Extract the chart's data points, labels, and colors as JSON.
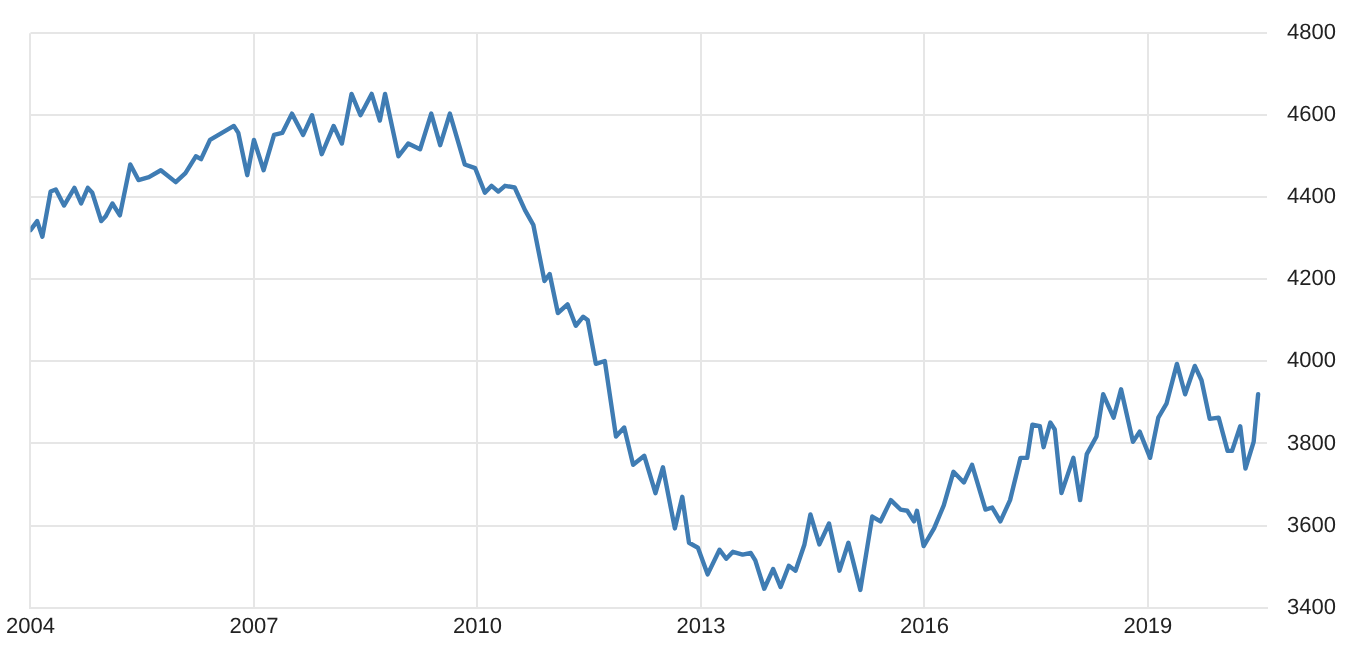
{
  "chart_data": {
    "type": "line",
    "color": "#3f7cb3",
    "marker": "none",
    "line_style": "solid",
    "grid": true,
    "legend": false,
    "x": [
      2004.0,
      2004.09,
      2004.16,
      2004.27,
      2004.34,
      2004.45,
      2004.59,
      2004.68,
      2004.77,
      2004.83,
      2004.95,
      2005.01,
      2005.1,
      2005.2,
      2005.34,
      2005.45,
      2005.59,
      2005.75,
      2005.95,
      2006.08,
      2006.22,
      2006.29,
      2006.41,
      2006.57,
      2006.73,
      2006.79,
      2006.91,
      2007.0,
      2007.13,
      2007.27,
      2007.38,
      2007.51,
      2007.66,
      2007.78,
      2007.91,
      2008.07,
      2008.18,
      2008.31,
      2008.43,
      2008.58,
      2008.69,
      2008.76,
      2008.94,
      2009.07,
      2009.23,
      2009.38,
      2009.5,
      2009.63,
      2009.83,
      2009.97,
      2010.1,
      2010.19,
      2010.28,
      2010.37,
      2010.5,
      2010.64,
      2010.75,
      2010.9,
      2010.97,
      2011.08,
      2011.21,
      2011.32,
      2011.42,
      2011.48,
      2011.59,
      2011.71,
      2011.86,
      2011.97,
      2012.09,
      2012.24,
      2012.39,
      2012.49,
      2012.65,
      2012.75,
      2012.84,
      2012.96,
      2013.09,
      2013.25,
      2013.34,
      2013.43,
      2013.56,
      2013.67,
      2013.73,
      2013.85,
      2013.97,
      2014.07,
      2014.18,
      2014.27,
      2014.39,
      2014.47,
      2014.59,
      2014.72,
      2014.86,
      2014.98,
      2015.14,
      2015.3,
      2015.41,
      2015.55,
      2015.68,
      2015.77,
      2015.86,
      2015.9,
      2015.99,
      2016.13,
      2016.26,
      2016.39,
      2016.53,
      2016.64,
      2016.82,
      2016.91,
      2017.02,
      2017.15,
      2017.29,
      2017.38,
      2017.45,
      2017.55,
      2017.6,
      2017.69,
      2017.75,
      2017.84,
      2018.0,
      2018.09,
      2018.18,
      2018.31,
      2018.4,
      2018.54,
      2018.64,
      2018.8,
      2018.89,
      2019.03,
      2019.14,
      2019.25,
      2019.39,
      2019.5,
      2019.63,
      2019.72,
      2019.83,
      2019.95,
      2020.07,
      2020.13,
      2020.24,
      2020.31,
      2020.42,
      2020.48
    ],
    "values": [
      4320,
      4342,
      4304,
      4414,
      4419,
      4380,
      4423,
      4385,
      4423,
      4411,
      4342,
      4354,
      4385,
      4356,
      4480,
      4442,
      4449,
      4466,
      4437,
      4459,
      4500,
      4493,
      4540,
      4557,
      4574,
      4557,
      4454,
      4540,
      4466,
      4552,
      4557,
      4604,
      4552,
      4600,
      4505,
      4574,
      4531,
      4652,
      4600,
      4652,
      4587,
      4652,
      4500,
      4531,
      4517,
      4604,
      4527,
      4604,
      4480,
      4471,
      4411,
      4428,
      4414,
      4428,
      4424,
      4368,
      4333,
      4196,
      4213,
      4118,
      4139,
      4087,
      4109,
      4101,
      3994,
      4001,
      3817,
      3839,
      3748,
      3770,
      3679,
      3742,
      3593,
      3670,
      3558,
      3546,
      3481,
      3541,
      3519,
      3536,
      3529,
      3533,
      3515,
      3446,
      3494,
      3450,
      3502,
      3490,
      3554,
      3627,
      3554,
      3605,
      3490,
      3558,
      3443,
      3622,
      3610,
      3662,
      3639,
      3636,
      3610,
      3636,
      3550,
      3593,
      3649,
      3731,
      3705,
      3748,
      3639,
      3644,
      3610,
      3662,
      3765,
      3765,
      3846,
      3842,
      3791,
      3851,
      3834,
      3679,
      3765,
      3662,
      3774,
      3817,
      3920,
      3863,
      3932,
      3804,
      3829,
      3765,
      3863,
      3897,
      3994,
      3920,
      3989,
      3954,
      3860,
      3863,
      3782,
      3782,
      3842,
      3739,
      3804,
      3920
    ],
    "xlim": [
      2004,
      2020.6
    ],
    "xticks": [
      2004,
      2007,
      2010,
      2013,
      2016,
      2019
    ],
    "ylim": [
      3400,
      4800
    ],
    "yticks": [
      3400,
      3600,
      3800,
      4000,
      4200,
      4400,
      4600,
      4800
    ]
  }
}
